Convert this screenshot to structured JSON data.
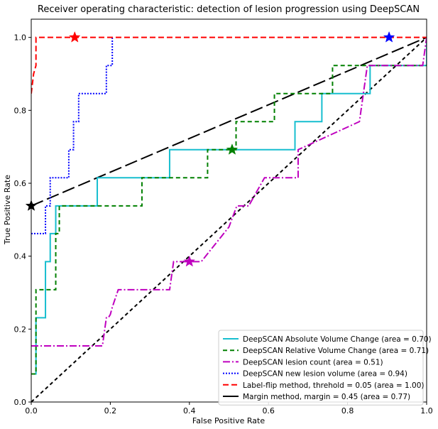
{
  "chart_data": {
    "type": "line",
    "title": "Receiver operating characteristic: detection of lesion progression using DeepSCAN",
    "xlabel": "False Positive Rate",
    "ylabel": "True Positive Rate",
    "xlim": [
      0.0,
      1.0
    ],
    "ylim": [
      0.0,
      1.05
    ],
    "xticks": [
      "0.0",
      "0.2",
      "0.4",
      "0.6",
      "0.8",
      "1.0"
    ],
    "yticks": [
      "0.0",
      "0.2",
      "0.4",
      "0.6",
      "0.8",
      "1.0"
    ],
    "grid": false,
    "legend_position": "lower-right",
    "series": [
      {
        "name": "DeepSCAN Absolute Volume Change (area = 0.70)",
        "color": "#17becf",
        "dash": "solid",
        "width": 2,
        "x": [
          0,
          0.012,
          0.012,
          0.036,
          0.036,
          0.048,
          0.048,
          0.062,
          0.062,
          0.167,
          0.167,
          0.35,
          0.35,
          0.667,
          0.667,
          0.735,
          0.735,
          0.857,
          0.857,
          1.0,
          1.0
        ],
        "y": [
          0.077,
          0.077,
          0.231,
          0.231,
          0.385,
          0.385,
          0.462,
          0.462,
          0.538,
          0.538,
          0.615,
          0.615,
          0.692,
          0.692,
          0.769,
          0.769,
          0.846,
          0.846,
          0.923,
          0.923,
          1.0
        ]
      },
      {
        "name": "DeepSCAN Relative Volume Change (area = 0.71)",
        "color": "#008000",
        "dash": "6,4",
        "width": 2,
        "x": [
          0,
          0.012,
          0.012,
          0.062,
          0.062,
          0.071,
          0.071,
          0.28,
          0.28,
          0.446,
          0.446,
          0.518,
          0.518,
          0.615,
          0.615,
          0.762,
          0.762,
          1.0
        ],
        "y": [
          0.077,
          0.077,
          0.308,
          0.308,
          0.462,
          0.462,
          0.538,
          0.538,
          0.615,
          0.615,
          0.692,
          0.692,
          0.769,
          0.769,
          0.846,
          0.846,
          0.923,
          0.923
        ]
      },
      {
        "name": "DeepSCAN lesion count (area = 0.51)",
        "color": "#bf00bf",
        "dash": "10,3,2,3",
        "width": 2,
        "x": [
          0,
          0.18,
          0.19,
          0.195,
          0.2,
          0.205,
          0.22,
          0.35,
          0.36,
          0.43,
          0.5,
          0.52,
          0.55,
          0.59,
          0.62,
          0.675,
          0.675,
          0.83,
          0.85,
          0.99,
          1.0
        ],
        "y": [
          0.154,
          0.154,
          0.231,
          0.231,
          0.24,
          0.26,
          0.308,
          0.308,
          0.385,
          0.385,
          0.48,
          0.538,
          0.538,
          0.615,
          0.615,
          0.615,
          0.692,
          0.769,
          0.923,
          0.923,
          1.0
        ]
      },
      {
        "name": "DeepSCAN new lesion volume (area = 0.94)",
        "color": "#0000ff",
        "dash": "2,2",
        "width": 2,
        "x": [
          0,
          0.036,
          0.036,
          0.048,
          0.048,
          0.095,
          0.095,
          0.107,
          0.107,
          0.12,
          0.12,
          0.19,
          0.19,
          0.205,
          0.205
        ],
        "y": [
          0.462,
          0.462,
          0.538,
          0.538,
          0.615,
          0.615,
          0.692,
          0.692,
          0.769,
          0.769,
          0.846,
          0.846,
          0.923,
          0.923,
          1.0
        ]
      },
      {
        "name": "Label-flip method, threhold = 0.05 (area = 1.00)",
        "color": "#ff0000",
        "dash": "8,4",
        "width": 2,
        "x": [
          0,
          0.006,
          0.012,
          0.012,
          1.0
        ],
        "y": [
          0.846,
          0.9,
          0.923,
          1.0,
          1.0
        ]
      },
      {
        "name": "Margin method, margin = 0.45 (area = 0.77)",
        "color": "#000000",
        "dash": "solid",
        "width": 2,
        "x": [],
        "y": []
      }
    ],
    "extra_lines": [
      {
        "label": "margin-method-curve",
        "color": "#000000",
        "dash": "18,6",
        "width": 2,
        "x": [
          0,
          1.0
        ],
        "y": [
          0.538,
          1.0
        ]
      },
      {
        "label": "diagonal-chance-line",
        "color": "#000000",
        "dash": "5,4",
        "width": 2,
        "x": [
          0,
          1.0
        ],
        "y": [
          0,
          1.0
        ]
      }
    ],
    "markers": [
      {
        "label": "red-star",
        "color": "#ff0000",
        "shape": "star",
        "x": 0.11,
        "y": 1.0
      },
      {
        "label": "blue-star",
        "color": "#0000ff",
        "shape": "star",
        "x": 0.905,
        "y": 1.0
      },
      {
        "label": "green-star",
        "color": "#008000",
        "shape": "star",
        "x": 0.508,
        "y": 0.692
      },
      {
        "label": "magenta-star",
        "color": "#bf00bf",
        "shape": "star",
        "x": 0.4,
        "y": 0.385
      },
      {
        "label": "black-star",
        "color": "#000000",
        "shape": "star",
        "x": 0.0,
        "y": 0.538
      }
    ]
  }
}
